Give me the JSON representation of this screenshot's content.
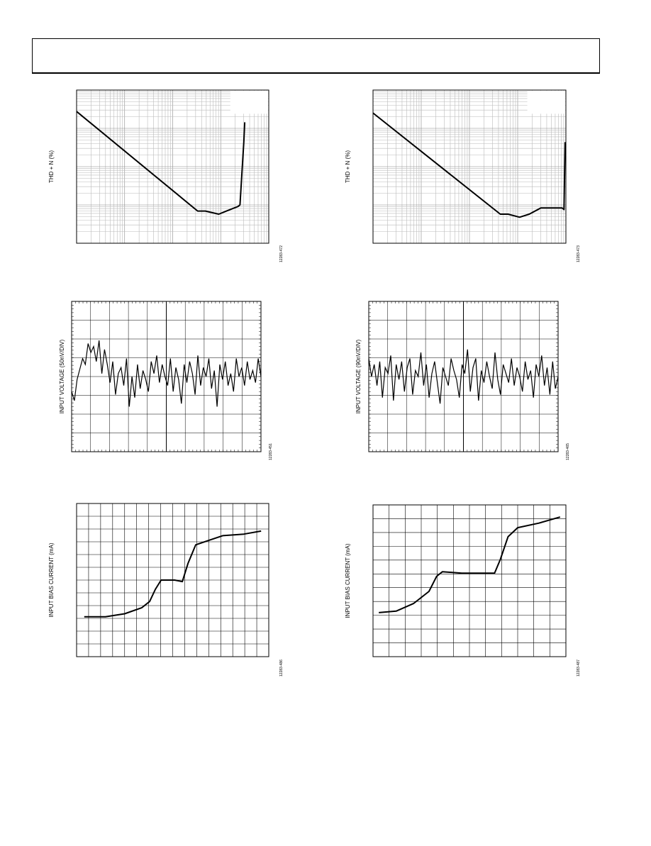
{
  "chart_data": [
    {
      "type": "line",
      "ylabel": "THD + N (%)",
      "figure_id": "12283-472",
      "log_x": true,
      "log_y": true,
      "grid": true,
      "xlim": [
        0,
        100
      ],
      "ylim": [
        0,
        100
      ],
      "x": [
        0,
        63,
        67,
        74,
        78,
        84,
        85,
        87,
        87.5
      ],
      "values": [
        86,
        21,
        21,
        19,
        21,
        24,
        25,
        66,
        79
      ],
      "color": "#000000"
    },
    {
      "type": "line",
      "ylabel": "THD + N (%)",
      "figure_id": "12283-473",
      "log_x": true,
      "log_y": true,
      "grid": true,
      "xlim": [
        0,
        100
      ],
      "ylim": [
        0,
        100
      ],
      "x": [
        0,
        66,
        70,
        76,
        81,
        87,
        98,
        99,
        99.6
      ],
      "values": [
        85,
        19,
        19,
        17,
        19,
        23,
        23,
        22,
        66
      ],
      "color": "#000000"
    },
    {
      "type": "noise",
      "ylabel": "INPUT VOLTAGE (50nV/DIV)",
      "figure_id": "12283-451",
      "grid": true,
      "ylim": [
        0,
        100
      ],
      "values": [
        40,
        34,
        48,
        55,
        62,
        58,
        72,
        66,
        70,
        60,
        74,
        52,
        68,
        58,
        46,
        60,
        38,
        52,
        56,
        44,
        62,
        30,
        50,
        36,
        58,
        42,
        54,
        48,
        40,
        60,
        52,
        64,
        46,
        58,
        50,
        44,
        62,
        40,
        56,
        48,
        32,
        58,
        46,
        60,
        52,
        38,
        64,
        44,
        56,
        50,
        62,
        42,
        54,
        30,
        58,
        48,
        60,
        44,
        52,
        40,
        62,
        50,
        56,
        44,
        60,
        48,
        54,
        46,
        62,
        50
      ],
      "color": "#000000"
    },
    {
      "type": "noise",
      "ylabel": "INPUT VOLTAGE (90nV/DIV)",
      "figure_id": "12283-465",
      "grid": true,
      "ylim": [
        0,
        100
      ],
      "values": [
        62,
        50,
        58,
        44,
        60,
        36,
        56,
        52,
        64,
        34,
        58,
        48,
        60,
        40,
        56,
        62,
        38,
        54,
        50,
        66,
        44,
        58,
        36,
        52,
        60,
        46,
        32,
        56,
        50,
        44,
        62,
        54,
        48,
        36,
        58,
        52,
        68,
        40,
        56,
        62,
        34,
        54,
        46,
        60,
        50,
        42,
        66,
        48,
        38,
        58,
        52,
        46,
        62,
        44,
        56,
        50,
        40,
        60,
        48,
        54,
        36,
        58,
        50,
        64,
        44,
        56,
        38,
        60,
        42,
        50
      ],
      "color": "#000000"
    },
    {
      "type": "line",
      "ylabel": "INPUT BIAS CURRENT (mA)",
      "figure_id": "12283-486",
      "grid": true,
      "xlim": [
        0,
        100
      ],
      "ylim": [
        0,
        100
      ],
      "x": [
        4,
        15,
        25,
        34,
        38,
        41,
        44,
        51,
        55,
        58,
        62,
        69,
        76,
        87,
        96
      ],
      "values": [
        26,
        26,
        28,
        32,
        36,
        44,
        50,
        50,
        49,
        61,
        73,
        76,
        79,
        80,
        82
      ],
      "color": "#000000"
    },
    {
      "type": "line",
      "ylabel": "INPUT BIAS CURRENT (mA)",
      "figure_id": "12283-487",
      "grid": true,
      "xlim": [
        0,
        100
      ],
      "ylim": [
        0,
        100
      ],
      "x": [
        3,
        12,
        21,
        29,
        33,
        36,
        46,
        63,
        66,
        70,
        75,
        86,
        97
      ],
      "values": [
        29,
        30,
        35,
        43,
        53,
        56,
        55,
        55,
        64,
        79,
        85,
        88,
        92
      ],
      "color": "#000000"
    }
  ]
}
